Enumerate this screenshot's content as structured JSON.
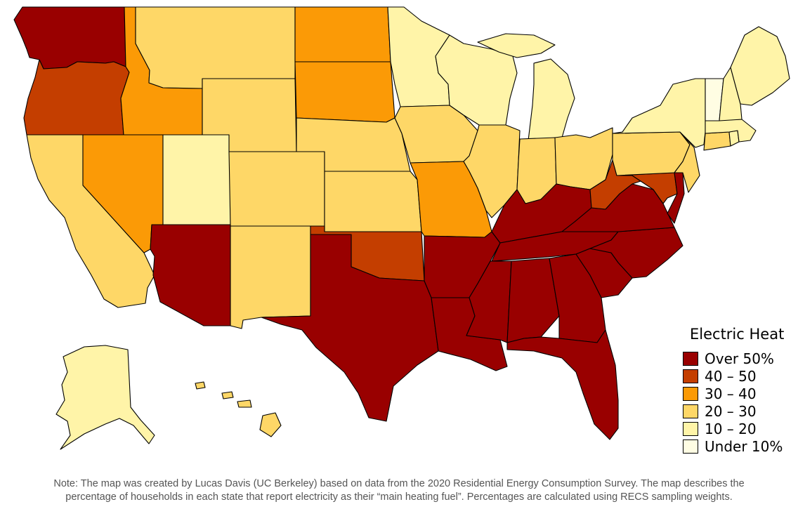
{
  "map": {
    "title": "",
    "palette": {
      "over50": "#990000",
      "40to50": "#c43e00",
      "30to40": "#fb9a06",
      "20to30": "#fed767",
      "10to20": "#fff4a8",
      "under10": "#fffde3"
    },
    "states": [
      {
        "id": "WA",
        "name": "Washington",
        "class": "over50"
      },
      {
        "id": "OR",
        "name": "Oregon",
        "class": "40to50"
      },
      {
        "id": "CA",
        "name": "California",
        "class": "20to30"
      },
      {
        "id": "ID",
        "name": "Idaho",
        "class": "30to40"
      },
      {
        "id": "NV",
        "name": "Nevada",
        "class": "30to40"
      },
      {
        "id": "MT",
        "name": "Montana",
        "class": "20to30"
      },
      {
        "id": "WY",
        "name": "Wyoming",
        "class": "20to30"
      },
      {
        "id": "UT",
        "name": "Utah",
        "class": "10to20"
      },
      {
        "id": "CO",
        "name": "Colorado",
        "class": "20to30"
      },
      {
        "id": "AZ",
        "name": "Arizona",
        "class": "over50"
      },
      {
        "id": "NM",
        "name": "New Mexico",
        "class": "20to30"
      },
      {
        "id": "ND",
        "name": "North Dakota",
        "class": "30to40"
      },
      {
        "id": "SD",
        "name": "South Dakota",
        "class": "30to40"
      },
      {
        "id": "NE",
        "name": "Nebraska",
        "class": "20to30"
      },
      {
        "id": "KS",
        "name": "Kansas",
        "class": "20to30"
      },
      {
        "id": "OK",
        "name": "Oklahoma",
        "class": "40to50"
      },
      {
        "id": "TX",
        "name": "Texas",
        "class": "over50"
      },
      {
        "id": "MN",
        "name": "Minnesota",
        "class": "10to20"
      },
      {
        "id": "IA",
        "name": "Iowa",
        "class": "20to30"
      },
      {
        "id": "MO",
        "name": "Missouri",
        "class": "30to40"
      },
      {
        "id": "AR",
        "name": "Arkansas",
        "class": "over50"
      },
      {
        "id": "LA",
        "name": "Louisiana",
        "class": "over50"
      },
      {
        "id": "WI",
        "name": "Wisconsin",
        "class": "10to20"
      },
      {
        "id": "IL",
        "name": "Illinois",
        "class": "20to30"
      },
      {
        "id": "MI",
        "name": "Michigan",
        "class": "10to20"
      },
      {
        "id": "IN",
        "name": "Indiana",
        "class": "20to30"
      },
      {
        "id": "OH",
        "name": "Ohio",
        "class": "20to30"
      },
      {
        "id": "KY",
        "name": "Kentucky",
        "class": "over50"
      },
      {
        "id": "TN",
        "name": "Tennessee",
        "class": "over50"
      },
      {
        "id": "MS",
        "name": "Mississippi",
        "class": "over50"
      },
      {
        "id": "AL",
        "name": "Alabama",
        "class": "over50"
      },
      {
        "id": "GA",
        "name": "Georgia",
        "class": "over50"
      },
      {
        "id": "FL",
        "name": "Florida",
        "class": "over50"
      },
      {
        "id": "SC",
        "name": "South Carolina",
        "class": "over50"
      },
      {
        "id": "NC",
        "name": "North Carolina",
        "class": "over50"
      },
      {
        "id": "VA",
        "name": "Virginia",
        "class": "over50"
      },
      {
        "id": "WV",
        "name": "West Virginia",
        "class": "40to50"
      },
      {
        "id": "MD",
        "name": "Maryland",
        "class": "40to50"
      },
      {
        "id": "DE",
        "name": "Delaware",
        "class": "over50"
      },
      {
        "id": "PA",
        "name": "Pennsylvania",
        "class": "20to30"
      },
      {
        "id": "NJ",
        "name": "New Jersey",
        "class": "20to30"
      },
      {
        "id": "NY",
        "name": "New York",
        "class": "10to20"
      },
      {
        "id": "CT",
        "name": "Connecticut",
        "class": "20to30"
      },
      {
        "id": "RI",
        "name": "Rhode Island",
        "class": "10to20"
      },
      {
        "id": "MA",
        "name": "Massachusetts",
        "class": "10to20"
      },
      {
        "id": "VT",
        "name": "Vermont",
        "class": "under10"
      },
      {
        "id": "NH",
        "name": "New Hampshire",
        "class": "10to20"
      },
      {
        "id": "ME",
        "name": "Maine",
        "class": "10to20"
      },
      {
        "id": "AK",
        "name": "Alaska",
        "class": "10to20"
      },
      {
        "id": "HI",
        "name": "Hawaii",
        "class": "20to30"
      }
    ]
  },
  "legend": {
    "title": "Electric Heat",
    "items": [
      {
        "class": "over50",
        "label": "Over 50%"
      },
      {
        "class": "40to50",
        "label": "40 – 50"
      },
      {
        "class": "30to40",
        "label": "30 – 40"
      },
      {
        "class": "20to30",
        "label": "20 – 30"
      },
      {
        "class": "10to20",
        "label": "10 – 20"
      },
      {
        "class": "under10",
        "label": "Under 10%"
      }
    ]
  },
  "note": {
    "line1": "Note: The map was created by Lucas Davis (UC Berkeley) based on data from the 2020 Residential Energy Consumption Survey. The map describes the",
    "line2": "percentage of households in each state that report electricity as their “main heating fuel”. Percentages are calculated using RECS sampling weights."
  }
}
